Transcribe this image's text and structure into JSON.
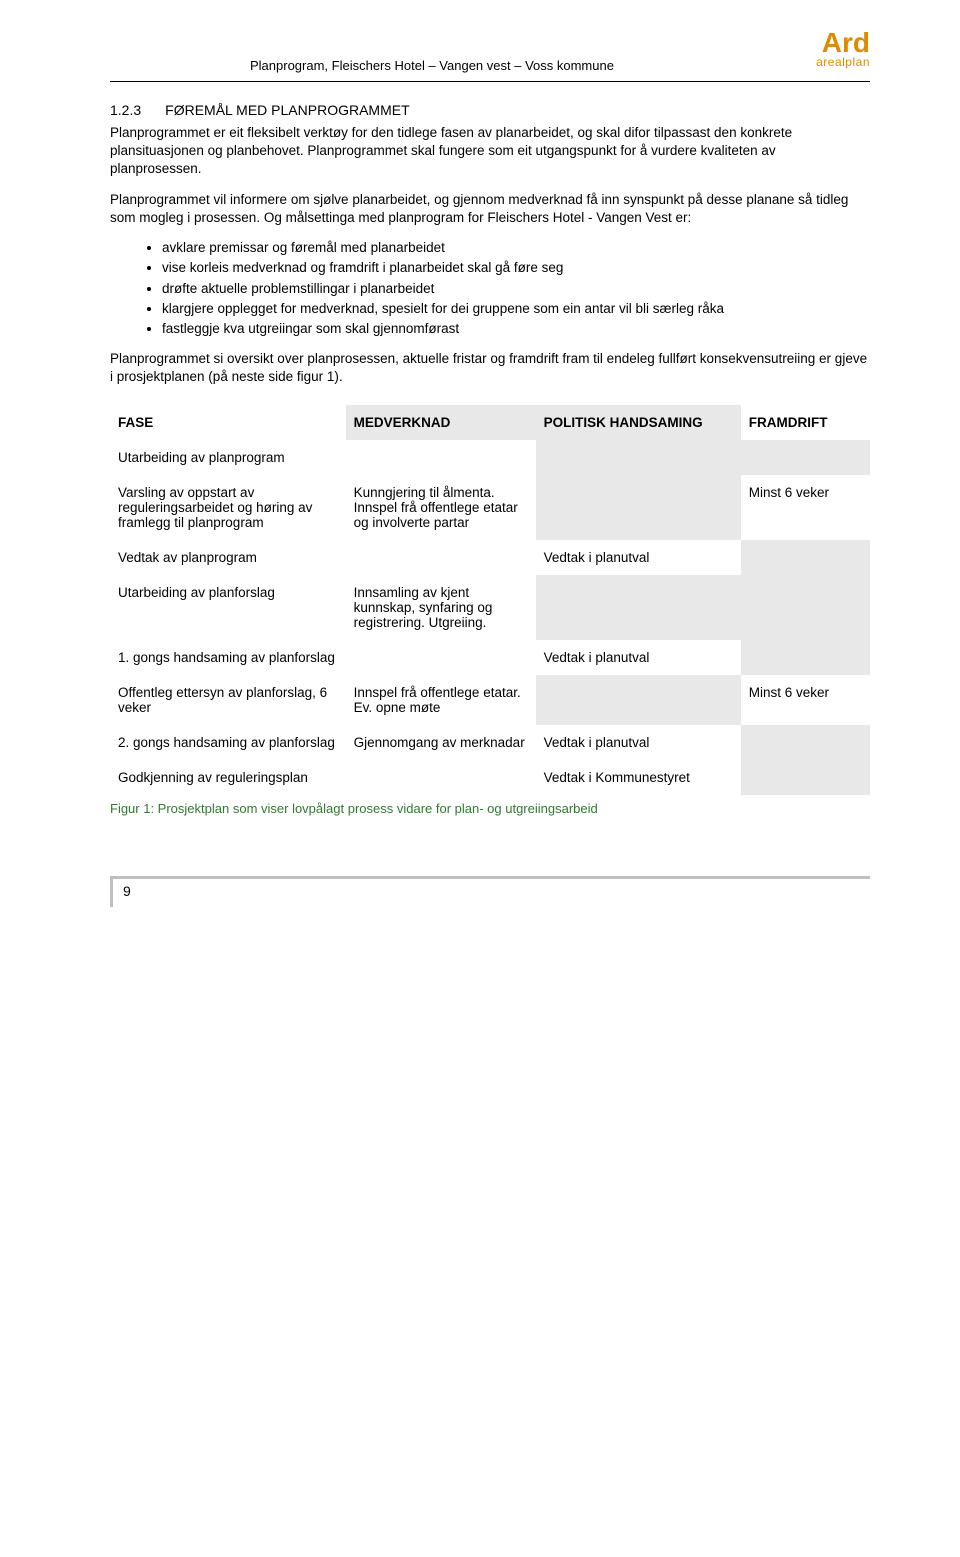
{
  "header": {
    "running_title": "Planprogram, Fleischers Hotel – Vangen vest – Voss kommune",
    "logo_main": "Ard",
    "logo_sub": "arealplan"
  },
  "section": {
    "number": "1.2.3",
    "title": "FØREMÅL MED PLANPROGRAMMET"
  },
  "para1": "Planprogrammet er eit fleksibelt verktøy for den tidlege fasen av planarbeidet, og skal difor tilpassast den konkrete plansituasjonen og planbehovet. Planprogrammet skal fungere som eit utgangspunkt for å vurdere kvaliteten av planprosessen.",
  "para2": "Planprogrammet vil informere om sjølve planarbeidet, og gjennom medverknad få inn synspunkt på desse planane så tidleg som mogleg i prosessen. Og målsettinga med planprogram for Fleischers Hotel - Vangen Vest er:",
  "bullets": [
    "avklare premissar og føremål med planarbeidet",
    "vise korleis medverknad og framdrift i planarbeidet skal gå føre seg",
    "drøfte aktuelle problemstillingar i planarbeidet",
    "klargjere opplegget for medverknad, spesielt for dei gruppene som ein antar vil bli særleg råka",
    "fastleggje kva utgreiingar som skal gjennomførast"
  ],
  "para3": "Planprogrammet si oversikt over planprosessen, aktuelle fristar og framdrift fram til endeleg fullført konsekvensutreiing er gjeve i prosjektplanen (på neste side figur 1).",
  "table": {
    "headers": [
      "FASE",
      "MEDVERKNAD",
      "POLITISK HANDSAMING",
      "FRAMDRIFT"
    ],
    "rows": [
      {
        "type": "section",
        "cells": [
          "Utarbeiding av planprogram",
          "",
          "",
          ""
        ]
      },
      {
        "type": "data",
        "cells": [
          "Varsling av oppstart av reguleringsarbeidet og høring av framlegg til planprogram",
          "Kunngjering til ålmenta.\nInnspel frå offentlege etatar og involverte partar",
          "",
          "Minst 6 veker"
        ]
      },
      {
        "type": "data",
        "cells": [
          "Vedtak av planprogram",
          "",
          "Vedtak i planutval",
          ""
        ]
      },
      {
        "type": "section",
        "cells": [
          "Utarbeiding av planforslag",
          "Innsamling av kjent kunnskap, synfaring og registrering. Utgreiing.",
          "",
          ""
        ]
      },
      {
        "type": "section",
        "cells": [
          "1. gongs handsaming av planforslag",
          "",
          "Vedtak i planutval",
          ""
        ]
      },
      {
        "type": "data",
        "cells": [
          "Offentleg ettersyn av planforslag, 6 veker",
          "Innspel frå offentlege etatar. Ev. opne møte",
          "",
          "Minst 6 veker"
        ]
      },
      {
        "type": "data",
        "cells": [
          "2. gongs handsaming av planforslag",
          "Gjennomgang av merknadar",
          "Vedtak i planutval",
          ""
        ]
      },
      {
        "type": "section",
        "cells": [
          "Godkjenning av reguleringsplan",
          "",
          "Vedtak i Kommunestyret",
          ""
        ]
      }
    ]
  },
  "caption": "Figur 1: Prosjektplan som viser lovpålagt prosess vidare for plan- og utgreiingsarbeid",
  "page_number": "9",
  "colors": {
    "logo": "#e08a00",
    "caption": "#2f7a2f",
    "grey_cell": "#e8e8e8",
    "footer_border": "#bfbfbf"
  }
}
